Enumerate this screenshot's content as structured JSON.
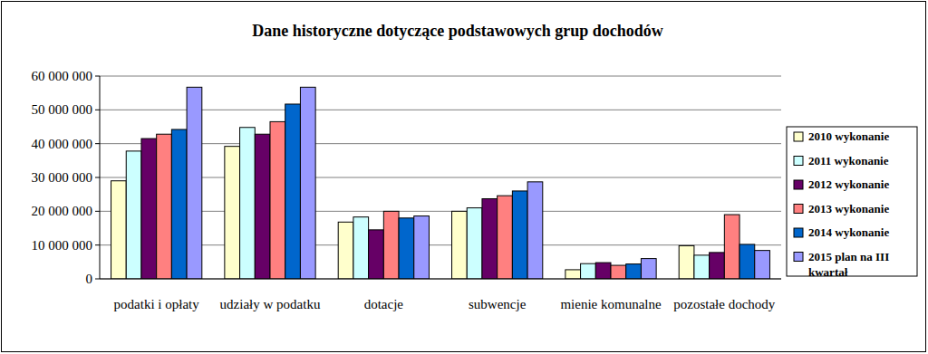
{
  "chart_data": {
    "type": "bar",
    "title": "Dane historyczne dotyczące podstawowych grup dochodów",
    "categories": [
      "podatki i opłaty",
      "udziały w podatku",
      "dotacje",
      "subwencje",
      "mienie komunalne",
      "pozostałe dochody"
    ],
    "series": [
      {
        "name": "2010 wykonanie",
        "color": "#ffffcc",
        "values": [
          29000000,
          39200000,
          16800000,
          20000000,
          2700000,
          9800000
        ]
      },
      {
        "name": "2011 wykonanie",
        "color": "#ccffff",
        "values": [
          37800000,
          44800000,
          18300000,
          21000000,
          4500000,
          7000000
        ]
      },
      {
        "name": "2012 wykonanie",
        "color": "#660066",
        "values": [
          41500000,
          42800000,
          14500000,
          23700000,
          4800000,
          7800000
        ]
      },
      {
        "name": "2013 wykonanie",
        "color": "#ff8080",
        "values": [
          42800000,
          46500000,
          20000000,
          24600000,
          4000000,
          19000000
        ]
      },
      {
        "name": "2014 wykonanie",
        "color": "#0066cc",
        "values": [
          44200000,
          51700000,
          18000000,
          26000000,
          4400000,
          10200000
        ]
      },
      {
        "name": "2015 plan na III kwartał",
        "color": "#9999ff",
        "values": [
          56700000,
          56700000,
          18600000,
          28700000,
          6000000,
          8400000
        ]
      }
    ],
    "ylim": [
      0,
      60000000
    ],
    "yticks": [
      0,
      {
        "value": 10000000,
        "label": "10 000 000"
      },
      {
        "value": 20000000,
        "label": "20 000 000"
      },
      {
        "value": 30000000,
        "label": "30 000 000"
      },
      {
        "value": 40000000,
        "label": "40 000 000"
      },
      {
        "value": 50000000,
        "label": "50 000 000"
      },
      {
        "value": 60000000,
        "label": "60 000 000"
      }
    ],
    "grid": true,
    "legend": "right"
  }
}
